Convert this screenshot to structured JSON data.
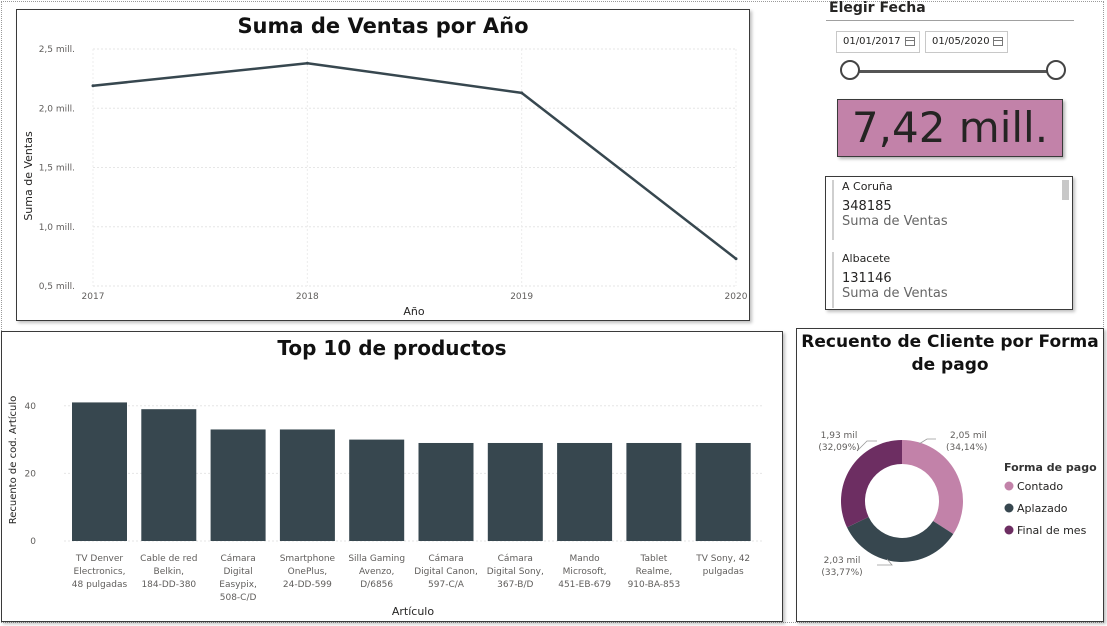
{
  "line_chart": {
    "title": "Suma de Ventas por Año",
    "xlabel": "Año",
    "ylabel": "Suma de Ventas",
    "y_ticks": [
      "2,5 mill.",
      "2,0 mill.",
      "1,5 mill.",
      "1,0 mill.",
      "0,5 mill."
    ],
    "x_ticks": [
      "2017",
      "2018",
      "2019",
      "2020"
    ]
  },
  "bar_chart": {
    "title": "Top 10 de productos",
    "xlabel": "Artículo",
    "ylabel": "Recuento de cod. Artículo",
    "y_ticks": [
      "40",
      "20",
      "0"
    ]
  },
  "donut_chart": {
    "title_line1": "Recuento de Cliente por Forma",
    "title_line2": "de pago",
    "legend_title": "Forma de pago",
    "slice_labels": [
      {
        "value": "2,05 mil",
        "pct": "(34,14%)"
      },
      {
        "value": "2,03 mil",
        "pct": "(33,77%)"
      },
      {
        "value": "1,93 mil",
        "pct": "(32,09%)"
      }
    ]
  },
  "date_slicer": {
    "title": "Elegir Fecha",
    "start_date": "01/01/2017",
    "end_date": "01/05/2020",
    "icon": "calendar-icon"
  },
  "kpi": {
    "value": "7,42 mill."
  },
  "multirow_card": {
    "items": [
      {
        "label": "A Coruña",
        "value": "348185",
        "desc": "Suma de Ventas"
      },
      {
        "label": "Albacete",
        "value": "131146",
        "desc": "Suma de Ventas"
      }
    ]
  },
  "colors": {
    "bar": "#37474f",
    "line": "#37474f",
    "contado": "#c282a9",
    "aplazado": "#37474f",
    "final_de_mes": "#6d2e62",
    "kpi_bg": "#c282a9"
  },
  "chart_data": [
    {
      "type": "line",
      "title": "Suma de Ventas por Año",
      "xlabel": "Año",
      "ylabel": "Suma de Ventas",
      "x": [
        "2017",
        "2018",
        "2019",
        "2020"
      ],
      "series": [
        {
          "values": [
            2.19,
            2.38,
            2.13,
            0.73
          ]
        }
      ],
      "ylim": [
        0.5,
        2.5
      ],
      "units": "mill.",
      "grid": true
    },
    {
      "type": "bar",
      "title": "Top 10 de productos",
      "xlabel": "Artículo",
      "ylabel": "Recuento de cod. Artículo",
      "categories": [
        [
          "TV Denver",
          "Electronics,",
          "48 pulgadas"
        ],
        [
          "Cable de red",
          "Belkin,",
          "184-DD-380"
        ],
        [
          "Cámara",
          "Digital",
          "Easypix,",
          "508-C/D"
        ],
        [
          "Smartphone",
          "OnePlus,",
          "24-DD-599"
        ],
        [
          "Silla Gaming",
          "Avenzo,",
          "D/6856"
        ],
        [
          "Cámara",
          "Digital Canon,",
          "597-C/A"
        ],
        [
          "Cámara",
          "Digital Sony,",
          "367-B/D"
        ],
        [
          "Mando",
          "Microsoft,",
          "451-EB-679"
        ],
        [
          "Tablet",
          "Realme,",
          "910-BA-853"
        ],
        [
          "TV Sony, 42",
          "pulgadas"
        ]
      ],
      "values": [
        41,
        39,
        33,
        33,
        30,
        29,
        29,
        29,
        29,
        29
      ],
      "ylim": [
        0,
        45
      ],
      "grid": true
    },
    {
      "type": "pie",
      "title": "Recuento de Cliente por Forma de pago",
      "legend_title": "Forma de pago",
      "legend_position": "right",
      "donut": true,
      "categories": [
        "Contado",
        "Aplazado",
        "Final de mes"
      ],
      "values": [
        2.05,
        2.03,
        1.93
      ],
      "percent_labels": [
        "34,14%",
        "33,77%",
        "32,09%"
      ],
      "units": "mil"
    }
  ]
}
